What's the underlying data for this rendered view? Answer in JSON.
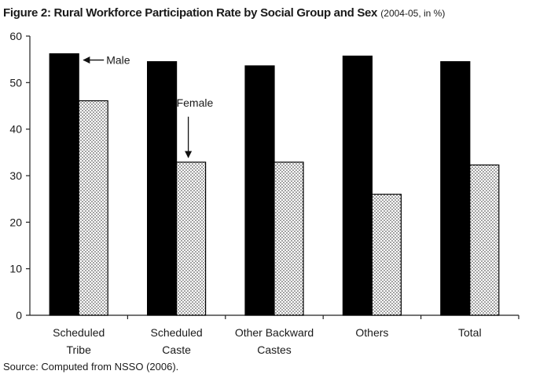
{
  "chart_data": {
    "type": "bar",
    "title": "Figure 2: Rural Workforce Participation Rate by Social Group and Sex",
    "subtitle": "(2004-05, in %)",
    "categories": [
      [
        "Scheduled",
        "Tribe"
      ],
      [
        "Scheduled",
        "Caste"
      ],
      [
        "Other Backward",
        "Castes"
      ],
      [
        "Others"
      ],
      [
        "Total"
      ]
    ],
    "series": [
      {
        "name": "Male",
        "values": [
          56.2,
          54.5,
          53.6,
          55.7,
          54.5
        ],
        "color": "#000000",
        "pattern": "solid"
      },
      {
        "name": "Female",
        "values": [
          46.1,
          32.9,
          32.9,
          26.0,
          32.3
        ],
        "color": "#ffffff",
        "pattern": "dotted"
      }
    ],
    "ylim": [
      0,
      60
    ],
    "yticks": [
      0,
      10,
      20,
      30,
      40,
      50,
      60
    ],
    "xlabel": "",
    "ylabel": "",
    "grid": false,
    "annotations": [
      {
        "text": "Male",
        "points_to": "Scheduled Tribe male bar"
      },
      {
        "text": "Female",
        "points_to": "Scheduled Caste female bar"
      }
    ],
    "source": "Source: Computed from NSSO (2006)."
  }
}
